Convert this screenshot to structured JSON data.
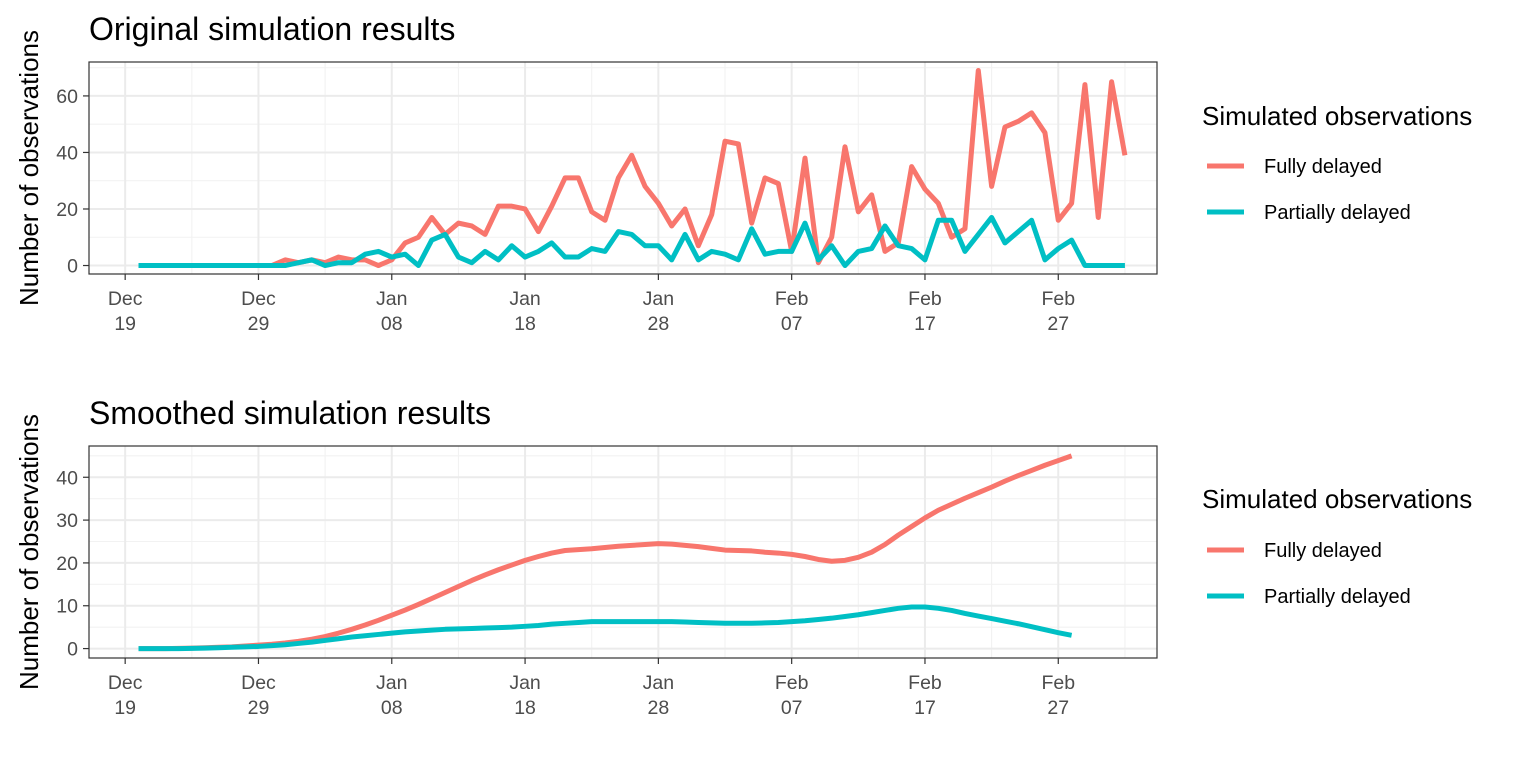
{
  "chart_data": [
    {
      "type": "line",
      "title": "Original simulation results",
      "xlabel": "",
      "ylabel": "Number of observations",
      "x_start": "2021-12-20",
      "x_tick_labels": [
        {
          "date": "2021-12-19",
          "month": "Dec",
          "day": "19"
        },
        {
          "date": "2021-12-29",
          "month": "Dec",
          "day": "29"
        },
        {
          "date": "2022-01-08",
          "month": "Jan",
          "day": "08"
        },
        {
          "date": "2022-01-18",
          "month": "Jan",
          "day": "18"
        },
        {
          "date": "2022-01-28",
          "month": "Jan",
          "day": "28"
        },
        {
          "date": "2022-02-07",
          "month": "Feb",
          "day": "07"
        },
        {
          "date": "2022-02-17",
          "month": "Feb",
          "day": "17"
        },
        {
          "date": "2022-02-27",
          "month": "Feb",
          "day": "27"
        }
      ],
      "y_ticks": [
        0,
        20,
        40,
        60
      ],
      "ylim": [
        -3,
        72
      ],
      "grid": true,
      "legend": {
        "title": "Simulated observations",
        "position": "right"
      },
      "series": [
        {
          "name": "Fully delayed",
          "color": "#F8766D",
          "values": [
            0,
            0,
            0,
            0,
            0,
            0,
            0,
            0,
            0,
            0,
            0,
            2,
            1,
            2,
            1,
            3,
            2,
            2,
            0,
            2,
            8,
            10,
            17,
            11,
            15,
            14,
            11,
            21,
            21,
            20,
            12,
            21,
            31,
            31,
            19,
            16,
            31,
            39,
            28,
            22,
            14,
            20,
            7,
            18,
            44,
            43,
            15,
            31,
            29,
            5,
            38,
            1,
            10,
            42,
            19,
            25,
            5,
            8,
            35,
            27,
            22,
            10,
            13,
            69,
            28,
            49,
            51,
            54,
            47,
            16,
            22,
            64,
            17,
            65,
            39
          ]
        },
        {
          "name": "Partially delayed",
          "color": "#00BFC4",
          "values": [
            0,
            0,
            0,
            0,
            0,
            0,
            0,
            0,
            0,
            0,
            0,
            0,
            1,
            2,
            0,
            1,
            1,
            4,
            5,
            3,
            4,
            0,
            9,
            11,
            3,
            1,
            5,
            2,
            7,
            3,
            5,
            8,
            3,
            3,
            6,
            5,
            12,
            11,
            7,
            7,
            2,
            11,
            2,
            5,
            4,
            2,
            13,
            4,
            5,
            5,
            15,
            2,
            7,
            0,
            5,
            6,
            14,
            7,
            6,
            2,
            16,
            16,
            5,
            11,
            17,
            8,
            12,
            16,
            2,
            6,
            9,
            0,
            0,
            0,
            0
          ]
        }
      ]
    },
    {
      "type": "line",
      "title": "Smoothed simulation results",
      "xlabel": "",
      "ylabel": "Number of observations",
      "x_start": "2021-12-20",
      "x_tick_labels": [
        {
          "date": "2021-12-19",
          "month": "Dec",
          "day": "19"
        },
        {
          "date": "2021-12-29",
          "month": "Dec",
          "day": "29"
        },
        {
          "date": "2022-01-08",
          "month": "Jan",
          "day": "08"
        },
        {
          "date": "2022-01-18",
          "month": "Jan",
          "day": "18"
        },
        {
          "date": "2022-01-28",
          "month": "Jan",
          "day": "28"
        },
        {
          "date": "2022-02-07",
          "month": "Feb",
          "day": "07"
        },
        {
          "date": "2022-02-17",
          "month": "Feb",
          "day": "17"
        },
        {
          "date": "2022-02-27",
          "month": "Feb",
          "day": "27"
        }
      ],
      "y_ticks": [
        0,
        10,
        20,
        30,
        40
      ],
      "ylim": [
        -2.2,
        47.3
      ],
      "grid": true,
      "legend": {
        "title": "Simulated observations",
        "position": "right"
      },
      "series": [
        {
          "name": "Fully delayed",
          "color": "#F8766D",
          "values": [
            0,
            0,
            0,
            0.05,
            0.1,
            0.2,
            0.3,
            0.4,
            0.6,
            0.8,
            1.0,
            1.3,
            1.7,
            2.2,
            2.8,
            3.6,
            4.5,
            5.5,
            6.6,
            7.8,
            9.0,
            10.3,
            11.7,
            13.1,
            14.5,
            15.9,
            17.2,
            18.4,
            19.5,
            20.6,
            21.5,
            22.3,
            22.9,
            23.1,
            23.3,
            23.6,
            23.9,
            24.1,
            24.3,
            24.5,
            24.4,
            24.1,
            23.8,
            23.4,
            23.0,
            22.9,
            22.8,
            22.5,
            22.3,
            22.0,
            21.5,
            20.8,
            20.4,
            20.6,
            21.3,
            22.5,
            24.3,
            26.5,
            28.5,
            30.5,
            32.3,
            33.7,
            35.1,
            36.4,
            37.7,
            39.1,
            40.4,
            41.6,
            42.8,
            43.9,
            45.0
          ]
        },
        {
          "name": "Partially delayed",
          "color": "#00BFC4",
          "values": [
            0,
            0,
            0,
            0,
            0.05,
            0.1,
            0.2,
            0.3,
            0.4,
            0.5,
            0.7,
            0.9,
            1.2,
            1.5,
            1.9,
            2.3,
            2.7,
            3.0,
            3.3,
            3.6,
            3.9,
            4.1,
            4.3,
            4.5,
            4.6,
            4.7,
            4.8,
            4.9,
            5.0,
            5.2,
            5.4,
            5.7,
            5.9,
            6.1,
            6.3,
            6.3,
            6.3,
            6.3,
            6.3,
            6.3,
            6.3,
            6.2,
            6.1,
            6.0,
            5.9,
            5.9,
            5.9,
            6.0,
            6.1,
            6.3,
            6.5,
            6.8,
            7.1,
            7.5,
            7.9,
            8.4,
            8.9,
            9.4,
            9.7,
            9.7,
            9.4,
            8.9,
            8.2,
            7.6,
            7.0,
            6.4,
            5.8,
            5.1,
            4.4,
            3.7,
            3.1
          ]
        }
      ]
    }
  ]
}
